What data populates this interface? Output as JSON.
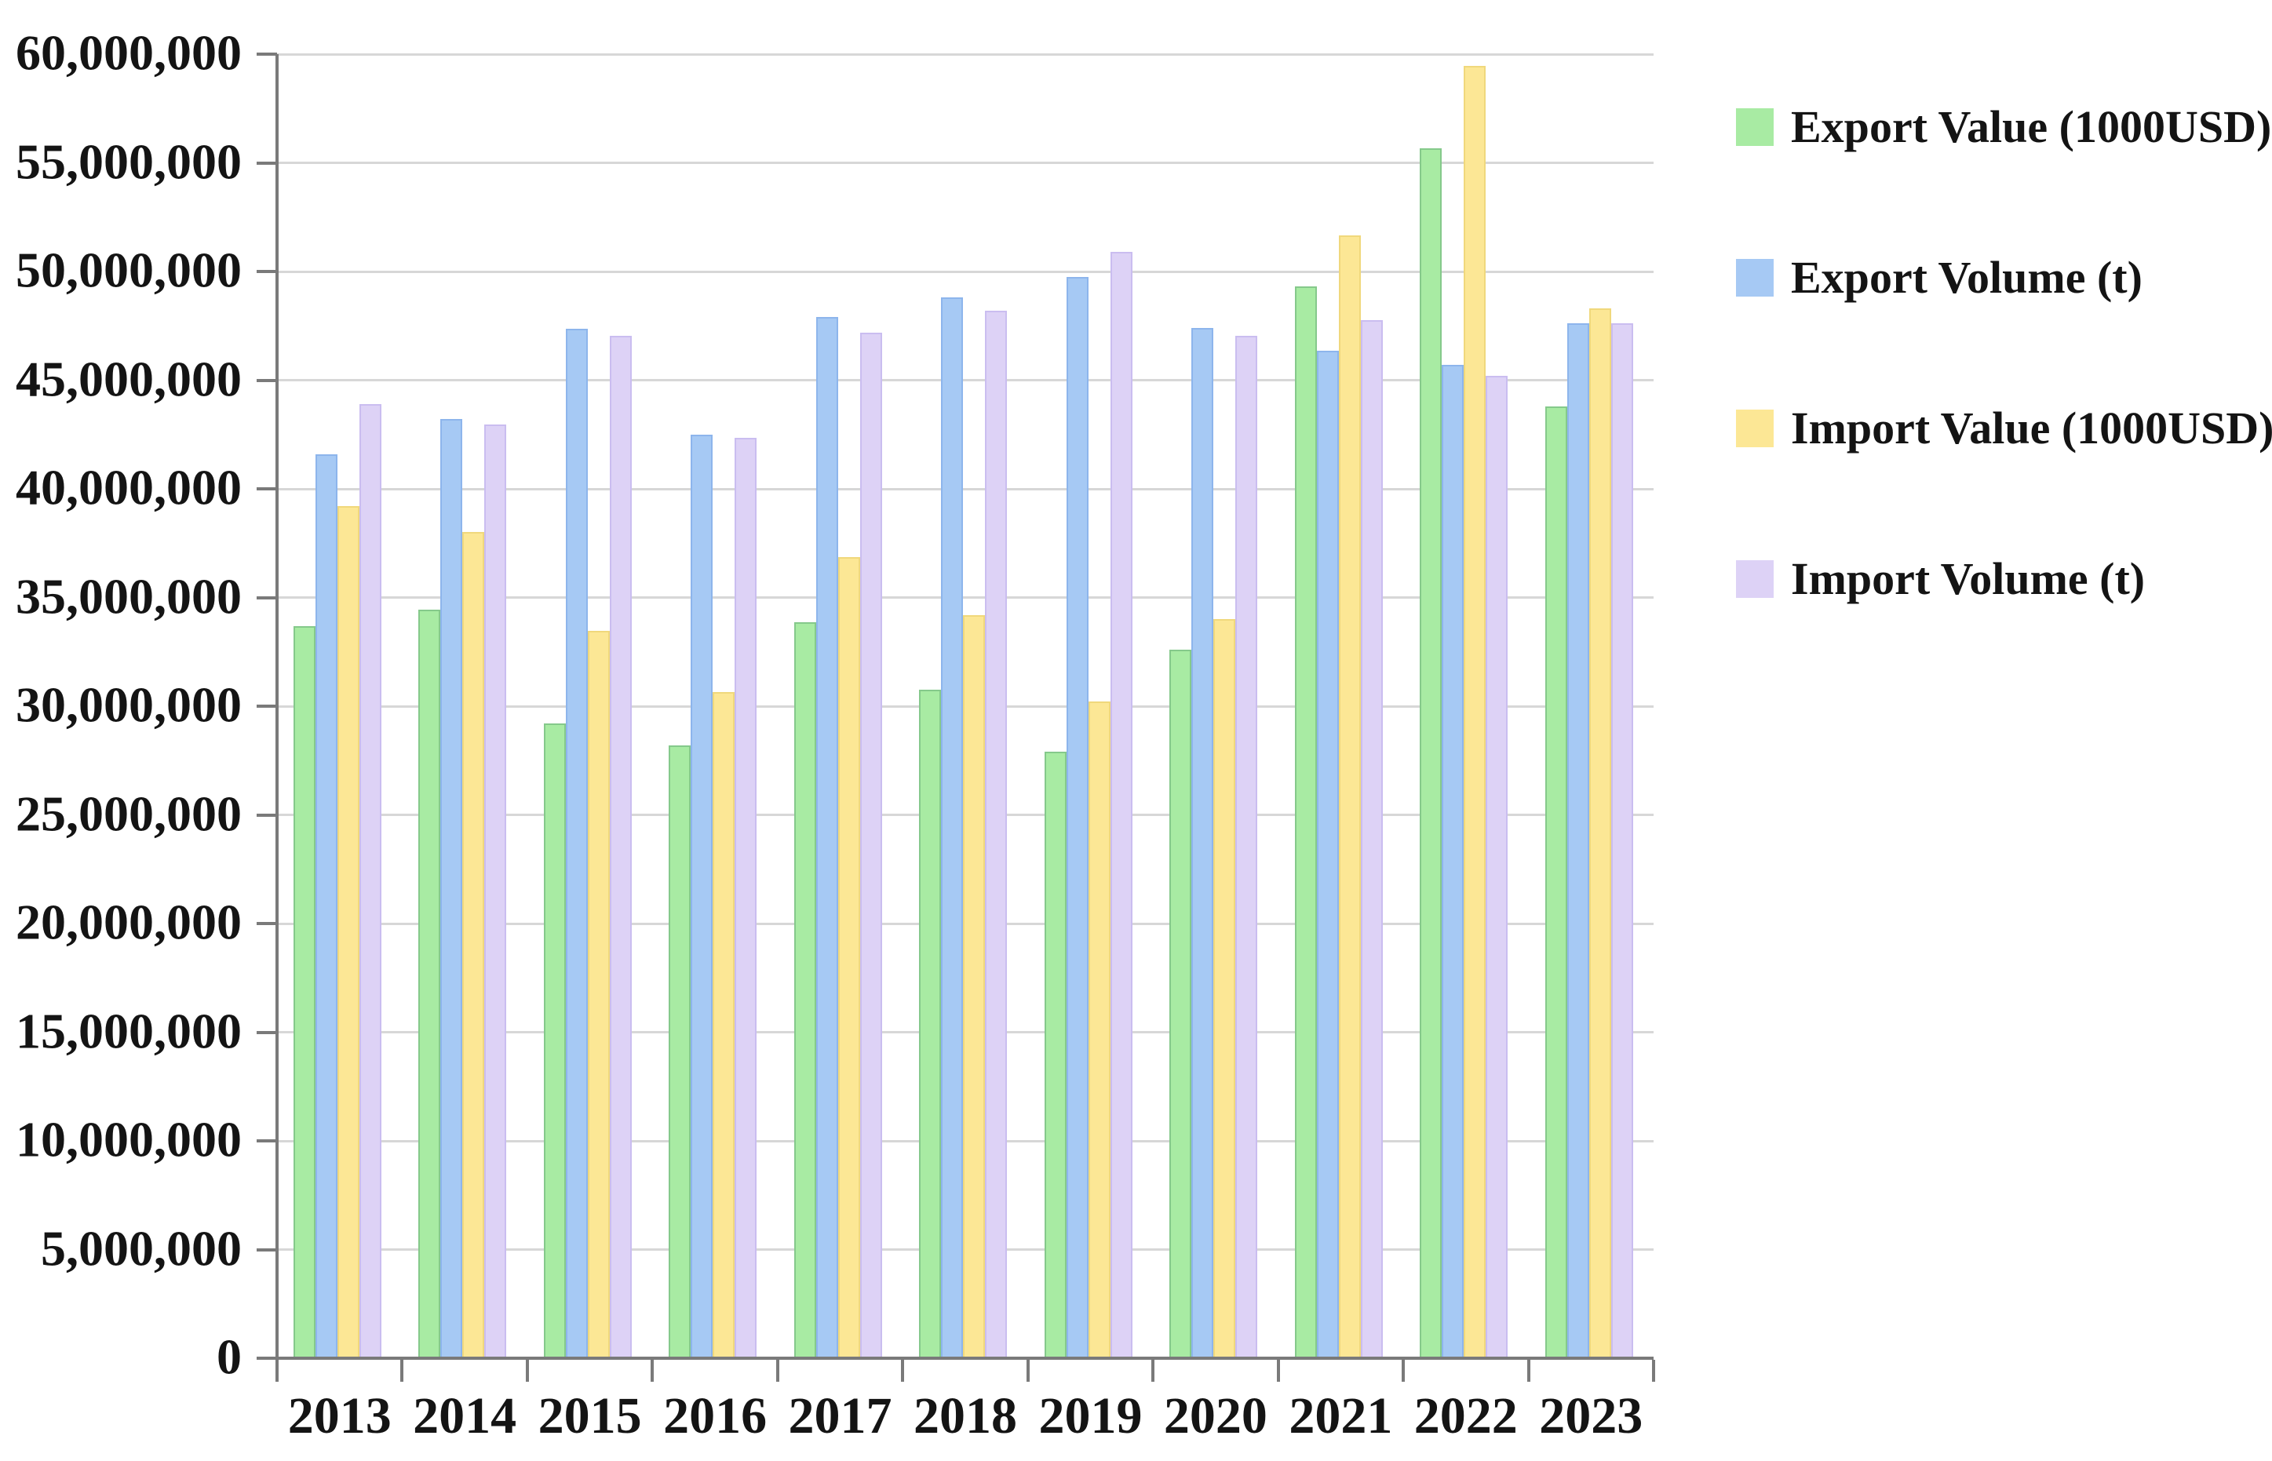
{
  "chart_data": {
    "type": "bar",
    "title": "",
    "xlabel": "",
    "ylabel": "",
    "categories": [
      "2013",
      "2014",
      "2015",
      "2016",
      "2017",
      "2018",
      "2019",
      "2020",
      "2021",
      "2022",
      "2023"
    ],
    "series": [
      {
        "name": "Export Value (1000USD)",
        "slug": "export-value",
        "color": "#a8eba3",
        "edge_color": "#85c98b",
        "values": [
          33700000,
          34450000,
          29200000,
          28200000,
          33850000,
          30750000,
          27900000,
          32600000,
          49300000,
          55650000,
          43800000
        ]
      },
      {
        "name": "Export Volume (t)",
        "slug": "export-volume",
        "color": "#a6c9f4",
        "edge_color": "#8db5ec",
        "values": [
          41600000,
          43200000,
          47350000,
          42500000,
          47900000,
          48800000,
          49750000,
          47400000,
          46350000,
          45700000,
          47600000
        ]
      },
      {
        "name": "Import Value (1000USD)",
        "slug": "import-value",
        "color": "#fce795",
        "edge_color": "#f0d87c",
        "values": [
          39200000,
          38000000,
          33450000,
          30650000,
          36850000,
          34200000,
          30200000,
          34000000,
          51650000,
          59450000,
          48300000
        ]
      },
      {
        "name": "Import Volume (t)",
        "slug": "import-volume",
        "color": "#ddd2f6",
        "edge_color": "#cabdf0",
        "values": [
          43900000,
          42950000,
          47050000,
          42350000,
          47200000,
          48200000,
          50900000,
          47050000,
          47750000,
          45200000,
          47600000
        ]
      }
    ],
    "ylim": [
      0,
      60000000
    ],
    "ytick_step": 5000000,
    "ytick_labels": [
      "0",
      "5,000,000",
      "10,000,000",
      "15,000,000",
      "20,000,000",
      "25,000,000",
      "30,000,000",
      "35,000,000",
      "40,000,000",
      "45,000,000",
      "50,000,000",
      "55,000,000",
      "60,000,000"
    ],
    "grid": "horizontal-only",
    "legend_position": "right"
  }
}
